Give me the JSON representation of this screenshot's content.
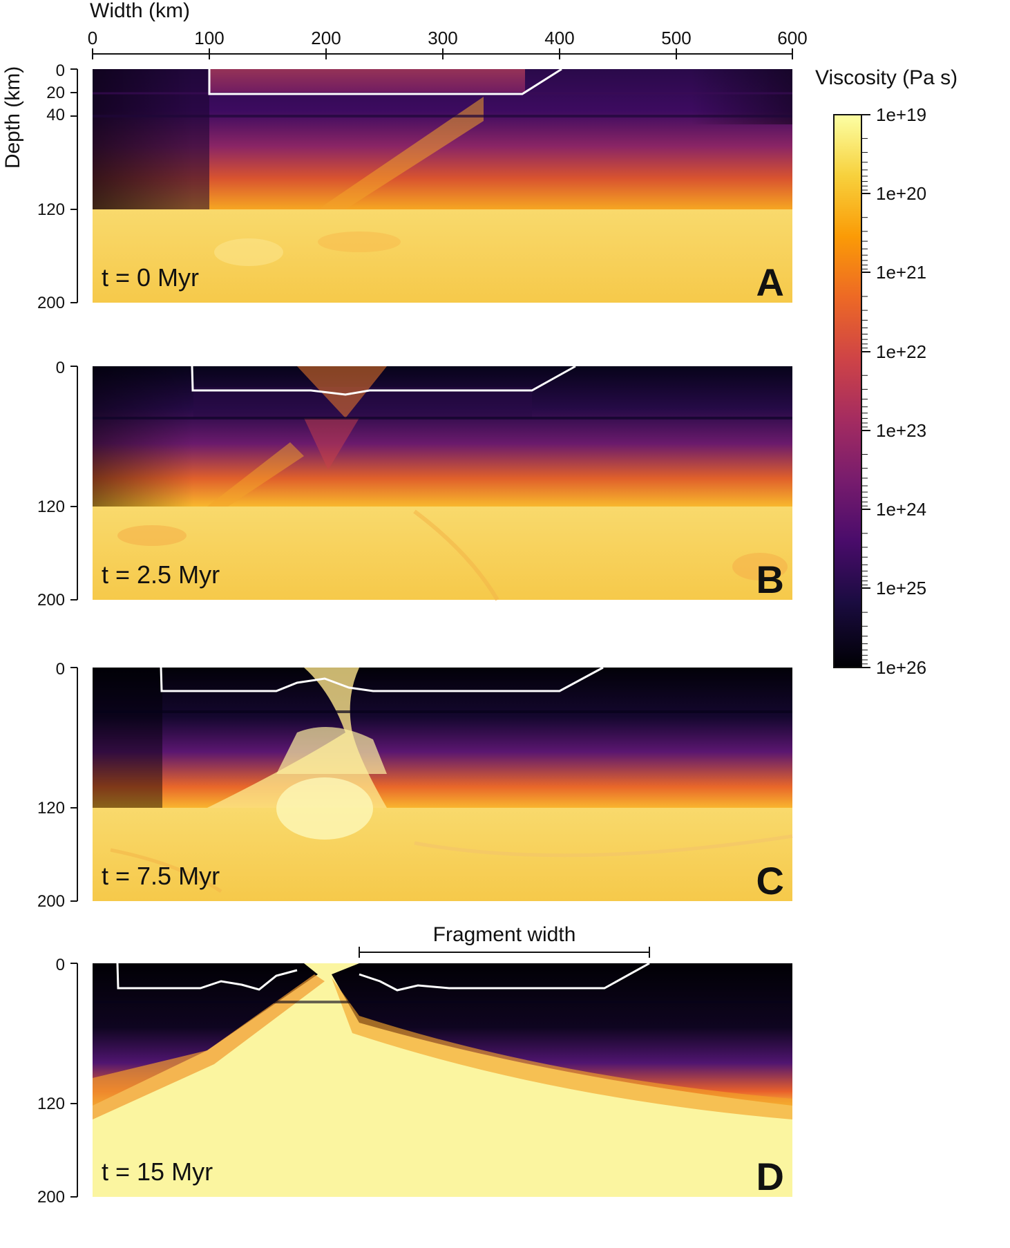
{
  "figure": {
    "x_axis": {
      "label": "Width (km)",
      "ticks": [
        "0",
        "100",
        "200",
        "300",
        "400",
        "500",
        "600"
      ]
    },
    "y_axis": {
      "label": "Depth (km)",
      "ticks_panel_a": [
        "0",
        "20",
        "40",
        "120",
        "200"
      ],
      "ticks_other": [
        "0",
        "120",
        "200"
      ]
    },
    "colorbar": {
      "title": "Viscosity (Pa s)",
      "ticks": [
        "1e+19",
        "1e+20",
        "1e+21",
        "1e+22",
        "1e+23",
        "1e+24",
        "1e+25",
        "1e+26"
      ],
      "colors": [
        "#fcffa4",
        "#f7d13d",
        "#fb9b06",
        "#ed6925",
        "#cf4446",
        "#a52c60",
        "#781c6d",
        "#4a0c6b",
        "#1b0c41",
        "#000004"
      ]
    },
    "panels": [
      {
        "letter": "A",
        "time": "t = 0 Myr"
      },
      {
        "letter": "B",
        "time": "t = 2.5 Myr"
      },
      {
        "letter": "C",
        "time": "t = 7.5 Myr"
      },
      {
        "letter": "D",
        "time": "t = 15 Myr",
        "annotation": "Fragment width"
      }
    ]
  }
}
